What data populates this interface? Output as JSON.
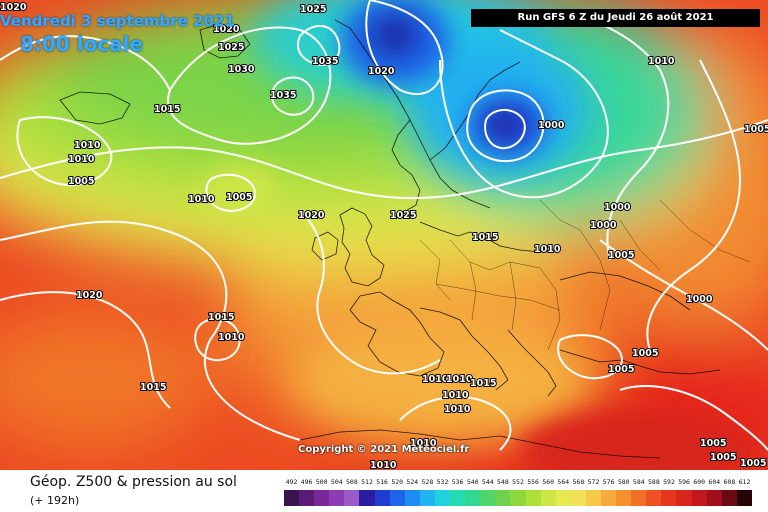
{
  "header": {
    "date_label": "Vendredi 3 septembre 2021",
    "time_label": "8:00 locale",
    "run_label": "Run GFS 6 Z du Jeudi 26 août 2021"
  },
  "copyright": "Copyright © 2021 Meteociel.fr",
  "legend": {
    "title": "Géop. Z500 & pression au sol",
    "subtitle": "(+ 192h)",
    "values": [
      "492",
      "496",
      "500",
      "504",
      "508",
      "512",
      "516",
      "520",
      "524",
      "528",
      "532",
      "536",
      "540",
      "544",
      "548",
      "552",
      "556",
      "560",
      "564",
      "568",
      "572",
      "576",
      "580",
      "584",
      "588",
      "592",
      "596",
      "600",
      "604",
      "608",
      "612"
    ],
    "colors": [
      "#3a1450",
      "#5a1a78",
      "#7a2898",
      "#8e3cb4",
      "#9a5ac8",
      "#2a1ea0",
      "#1f3cd0",
      "#1e64e8",
      "#1e8cf0",
      "#20b4f0",
      "#20d2dc",
      "#24dcb4",
      "#30d890",
      "#50d46c",
      "#6cd250",
      "#8cd83c",
      "#aee03c",
      "#cde646",
      "#e6ea50",
      "#f2e056",
      "#f6c848",
      "#f6ac3c",
      "#f4902e",
      "#f07028",
      "#ec5224",
      "#e63620",
      "#d8261c",
      "#c0181c",
      "#a0101c",
      "#6a0a12",
      "#280408"
    ]
  },
  "pressure_labels": [
    "1025",
    "1020",
    "1025",
    "1035",
    "1035",
    "1020",
    "1030",
    "1010",
    "1015",
    "1010",
    "1010",
    "1005",
    "1010",
    "1005",
    "1020",
    "1025",
    "1000",
    "1000",
    "1015",
    "1010",
    "1000",
    "1005",
    "1000",
    "1020",
    "1015",
    "1010",
    "1005",
    "1015",
    "1010",
    "1010",
    "1015",
    "1010",
    "1010",
    "1005",
    "1005",
    "1005",
    "1005",
    "1005",
    "1010",
    "1010",
    "1020"
  ]
}
